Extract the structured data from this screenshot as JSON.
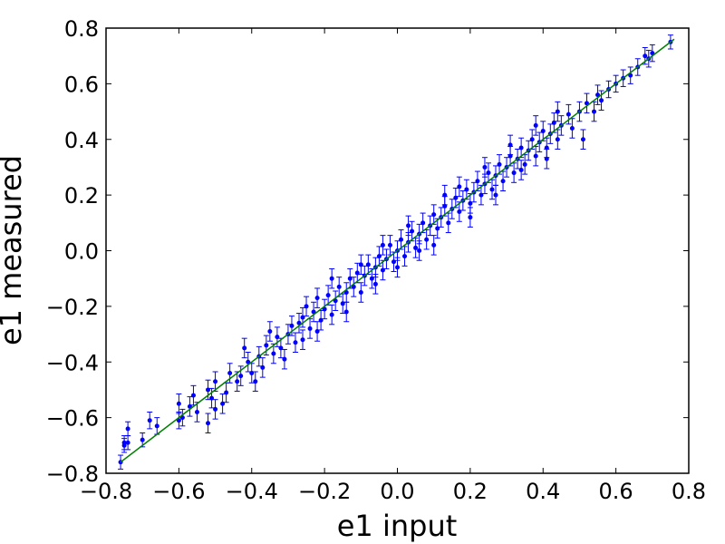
{
  "chart_data": {
    "type": "scatter",
    "title": "",
    "xlabel": "e1 input",
    "ylabel": "e1 measured",
    "xlim": [
      -0.8,
      0.8
    ],
    "ylim": [
      -0.8,
      0.8
    ],
    "x_ticks": [
      "−0.8",
      "−0.6",
      "−0.4",
      "−0.2",
      "0.0",
      "0.2",
      "0.4",
      "0.6",
      "0.8"
    ],
    "y_ticks": [
      "−0.8",
      "−0.6",
      "−0.4",
      "−0.2",
      "0.0",
      "0.2",
      "0.4",
      "0.6",
      "0.8"
    ],
    "grid": false,
    "legend": "none",
    "colors": {
      "points": "#0000ff",
      "errorbars": "#0000ff",
      "fit_line": "#008000"
    },
    "fit_line": {
      "x": [
        -0.76,
        0.76
      ],
      "y": [
        -0.76,
        0.76
      ]
    },
    "series": [
      {
        "points": [
          [
            -0.76,
            -0.76,
            0.025
          ],
          [
            -0.75,
            -0.7,
            0.025
          ],
          [
            -0.75,
            -0.69,
            0.025
          ],
          [
            -0.74,
            -0.64,
            0.025
          ],
          [
            -0.74,
            -0.69,
            0.025
          ],
          [
            -0.7,
            -0.68,
            0.025
          ],
          [
            -0.68,
            -0.61,
            0.03
          ],
          [
            -0.66,
            -0.63,
            0.03
          ],
          [
            -0.6,
            -0.61,
            0.03
          ],
          [
            -0.59,
            -0.6,
            0.03
          ],
          [
            -0.57,
            -0.56,
            0.035
          ],
          [
            -0.55,
            -0.58,
            0.035
          ],
          [
            -0.52,
            -0.5,
            0.035
          ],
          [
            -0.52,
            -0.62,
            0.035
          ],
          [
            -0.51,
            -0.53,
            0.035
          ],
          [
            -0.5,
            -0.47,
            0.035
          ],
          [
            -0.48,
            -0.55,
            0.035
          ],
          [
            -0.47,
            -0.51,
            0.035
          ],
          [
            -0.46,
            -0.44,
            0.035
          ],
          [
            -0.44,
            -0.47,
            0.035
          ],
          [
            -0.43,
            -0.45,
            0.035
          ],
          [
            -0.41,
            -0.4,
            0.035
          ],
          [
            -0.4,
            -0.44,
            0.035
          ],
          [
            -0.38,
            -0.38,
            0.035
          ],
          [
            -0.37,
            -0.42,
            0.035
          ],
          [
            -0.36,
            -0.34,
            0.035
          ],
          [
            -0.34,
            -0.37,
            0.035
          ],
          [
            -0.33,
            -0.31,
            0.035
          ],
          [
            -0.32,
            -0.35,
            0.035
          ],
          [
            -0.3,
            -0.3,
            0.035
          ],
          [
            -0.29,
            -0.27,
            0.035
          ],
          [
            -0.28,
            -0.33,
            0.035
          ],
          [
            -0.27,
            -0.26,
            0.035
          ],
          [
            -0.26,
            -0.24,
            0.035
          ],
          [
            -0.25,
            -0.2,
            0.035
          ],
          [
            -0.24,
            -0.28,
            0.035
          ],
          [
            -0.23,
            -0.22,
            0.035
          ],
          [
            -0.22,
            -0.17,
            0.035
          ],
          [
            -0.21,
            -0.25,
            0.035
          ],
          [
            -0.2,
            -0.21,
            0.035
          ],
          [
            -0.19,
            -0.16,
            0.035
          ],
          [
            -0.18,
            -0.23,
            0.035
          ],
          [
            -0.17,
            -0.18,
            0.035
          ],
          [
            -0.16,
            -0.13,
            0.035
          ],
          [
            -0.15,
            -0.19,
            0.035
          ],
          [
            -0.14,
            -0.15,
            0.035
          ],
          [
            -0.13,
            -0.1,
            0.035
          ],
          [
            -0.12,
            -0.13,
            0.035
          ],
          [
            -0.11,
            -0.08,
            0.035
          ],
          [
            -0.1,
            -0.15,
            0.035
          ],
          [
            -0.09,
            -0.09,
            0.035
          ],
          [
            -0.08,
            -0.05,
            0.035
          ],
          [
            -0.07,
            -0.1,
            0.035
          ],
          [
            -0.06,
            -0.06,
            0.035
          ],
          [
            -0.05,
            -0.02,
            0.035
          ],
          [
            -0.04,
            -0.07,
            0.035
          ],
          [
            -0.03,
            -0.03,
            0.035
          ],
          [
            -0.02,
            0.02,
            0.035
          ],
          [
            -0.01,
            -0.04,
            0.035
          ],
          [
            0.0,
            0.0,
            0.035
          ],
          [
            0.01,
            0.04,
            0.035
          ],
          [
            0.02,
            -0.02,
            0.035
          ],
          [
            0.03,
            0.03,
            0.035
          ],
          [
            0.04,
            0.07,
            0.035
          ],
          [
            0.05,
            0.01,
            0.035
          ],
          [
            0.06,
            0.06,
            0.035
          ],
          [
            0.07,
            0.1,
            0.035
          ],
          [
            0.08,
            0.04,
            0.035
          ],
          [
            0.09,
            0.09,
            0.035
          ],
          [
            0.1,
            0.13,
            0.035
          ],
          [
            0.11,
            0.08,
            0.035
          ],
          [
            0.12,
            0.12,
            0.035
          ],
          [
            0.13,
            0.16,
            0.035
          ],
          [
            0.14,
            0.1,
            0.035
          ],
          [
            0.15,
            0.15,
            0.035
          ],
          [
            0.16,
            0.19,
            0.035
          ],
          [
            0.17,
            0.14,
            0.035
          ],
          [
            0.18,
            0.18,
            0.035
          ],
          [
            0.19,
            0.22,
            0.035
          ],
          [
            0.2,
            0.17,
            0.035
          ],
          [
            0.21,
            0.21,
            0.035
          ],
          [
            0.22,
            0.25,
            0.035
          ],
          [
            0.23,
            0.2,
            0.035
          ],
          [
            0.24,
            0.24,
            0.035
          ],
          [
            0.25,
            0.28,
            0.035
          ],
          [
            0.26,
            0.22,
            0.035
          ],
          [
            0.27,
            0.27,
            0.035
          ],
          [
            0.28,
            0.31,
            0.035
          ],
          [
            0.29,
            0.25,
            0.035
          ],
          [
            0.3,
            0.3,
            0.035
          ],
          [
            0.31,
            0.34,
            0.035
          ],
          [
            0.32,
            0.28,
            0.035
          ],
          [
            0.33,
            0.33,
            0.035
          ],
          [
            0.34,
            0.37,
            0.035
          ],
          [
            0.35,
            0.31,
            0.035
          ],
          [
            0.36,
            0.36,
            0.035
          ],
          [
            0.37,
            0.4,
            0.035
          ],
          [
            0.38,
            0.34,
            0.035
          ],
          [
            0.39,
            0.39,
            0.035
          ],
          [
            0.4,
            0.43,
            0.035
          ],
          [
            0.41,
            0.37,
            0.035
          ],
          [
            0.42,
            0.42,
            0.035
          ],
          [
            0.43,
            0.46,
            0.035
          ],
          [
            0.44,
            0.4,
            0.035
          ],
          [
            0.45,
            0.45,
            0.035
          ],
          [
            0.47,
            0.49,
            0.035
          ],
          [
            0.48,
            0.44,
            0.035
          ],
          [
            0.5,
            0.5,
            0.035
          ],
          [
            0.51,
            0.4,
            0.035
          ],
          [
            0.52,
            0.53,
            0.035
          ],
          [
            0.54,
            0.5,
            0.035
          ],
          [
            0.55,
            0.56,
            0.035
          ],
          [
            0.56,
            0.54,
            0.035
          ],
          [
            0.58,
            0.58,
            0.03
          ],
          [
            0.6,
            0.6,
            0.03
          ],
          [
            0.62,
            0.62,
            0.03
          ],
          [
            0.64,
            0.63,
            0.03
          ],
          [
            0.66,
            0.66,
            0.03
          ],
          [
            0.68,
            0.7,
            0.03
          ],
          [
            0.69,
            0.69,
            0.03
          ],
          [
            0.7,
            0.71,
            0.03
          ],
          [
            0.75,
            0.75,
            0.025
          ],
          [
            -0.6,
            -0.55,
            0.035
          ],
          [
            -0.56,
            -0.52,
            0.035
          ],
          [
            -0.5,
            -0.57,
            0.035
          ],
          [
            -0.42,
            -0.35,
            0.035
          ],
          [
            -0.39,
            -0.47,
            0.035
          ],
          [
            -0.35,
            -0.29,
            0.035
          ],
          [
            -0.31,
            -0.39,
            0.035
          ],
          [
            -0.26,
            -0.32,
            0.035
          ],
          [
            -0.22,
            -0.29,
            0.035
          ],
          [
            -0.18,
            -0.1,
            0.035
          ],
          [
            -0.14,
            -0.22,
            0.035
          ],
          [
            -0.1,
            -0.05,
            0.035
          ],
          [
            -0.06,
            -0.12,
            0.035
          ],
          [
            -0.04,
            0.02,
            0.035
          ],
          [
            0.0,
            -0.06,
            0.035
          ],
          [
            0.03,
            0.09,
            0.035
          ],
          [
            0.06,
            0.0,
            0.035
          ],
          [
            0.1,
            0.02,
            0.035
          ],
          [
            0.13,
            0.2,
            0.035
          ],
          [
            0.17,
            0.23,
            0.035
          ],
          [
            0.2,
            0.12,
            0.035
          ],
          [
            0.24,
            0.3,
            0.035
          ],
          [
            0.27,
            0.2,
            0.035
          ],
          [
            0.31,
            0.38,
            0.035
          ],
          [
            0.34,
            0.29,
            0.035
          ],
          [
            0.38,
            0.45,
            0.035
          ],
          [
            0.41,
            0.33,
            0.035
          ],
          [
            0.44,
            0.5,
            0.035
          ]
        ]
      }
    ]
  }
}
